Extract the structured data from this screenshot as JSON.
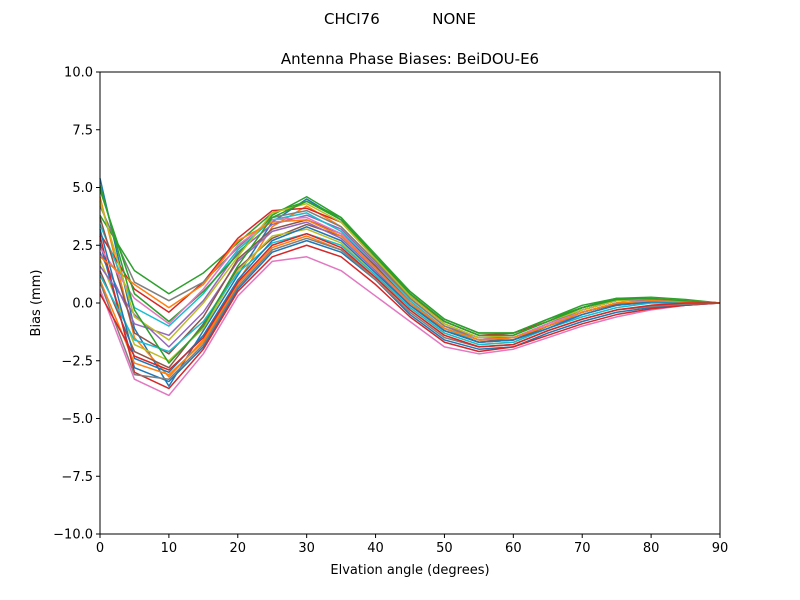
{
  "suptitle": "CHCI76           NONE",
  "chart_data": {
    "type": "line",
    "title": "Antenna Phase Biases: BeiDOU-E6",
    "xlabel": "Elvation angle (degrees)",
    "ylabel": "Bias (mm)",
    "xlim": [
      0,
      90
    ],
    "ylim": [
      -10,
      10
    ],
    "xticks": [
      0,
      10,
      20,
      30,
      40,
      50,
      60,
      70,
      80,
      90
    ],
    "xtick_labels": [
      "0",
      "10",
      "20",
      "30",
      "40",
      "50",
      "60",
      "70",
      "80",
      "90"
    ],
    "yticks": [
      -10,
      -7.5,
      -5,
      -2.5,
      0,
      2.5,
      5,
      7.5,
      10
    ],
    "ytick_labels": [
      "−10.0",
      "−7.5",
      "−5.0",
      "−2.5",
      "0.0",
      "2.5",
      "5.0",
      "7.5",
      "10.0"
    ],
    "grid": false,
    "legend": "none",
    "palette": [
      "#1f77b4",
      "#ff7f0e",
      "#2ca02c",
      "#d62728",
      "#9467bd",
      "#8c564b",
      "#e377c2",
      "#7f7f7f",
      "#bcbd22",
      "#17becf"
    ],
    "x": [
      0,
      5,
      10,
      15,
      20,
      25,
      30,
      35,
      40,
      45,
      50,
      55,
      60,
      65,
      70,
      75,
      80,
      85,
      90
    ],
    "series": [
      {
        "values": [
          5.4,
          -1.1,
          -3.6,
          -1.2,
          1.2,
          3.5,
          4.5,
          3.6,
          2.0,
          0.4,
          -0.8,
          -1.4,
          -1.4,
          -0.8,
          -0.2,
          0.2,
          0.2,
          0.1,
          0.0
        ]
      },
      {
        "values": [
          4.6,
          -1.5,
          -3.2,
          -1.6,
          0.9,
          3.3,
          4.2,
          3.3,
          1.8,
          0.3,
          -0.9,
          -1.5,
          -1.5,
          -0.9,
          -0.3,
          0.1,
          0.15,
          0.1,
          0.0
        ]
      },
      {
        "values": [
          3.8,
          1.4,
          0.4,
          1.3,
          2.6,
          3.9,
          4.4,
          3.7,
          2.0,
          0.5,
          -0.7,
          -1.3,
          -1.3,
          -0.7,
          -0.1,
          0.2,
          0.25,
          0.15,
          0.0
        ]
      },
      {
        "values": [
          3.0,
          0.6,
          -0.4,
          0.9,
          2.8,
          4.0,
          4.1,
          3.5,
          1.9,
          0.3,
          -0.8,
          -1.4,
          -1.3,
          -0.8,
          -0.2,
          0.15,
          0.2,
          0.1,
          0.0
        ]
      },
      {
        "values": [
          2.2,
          -0.9,
          -1.4,
          0.1,
          2.2,
          3.4,
          3.8,
          3.2,
          1.7,
          0.2,
          -1.0,
          -1.5,
          -1.5,
          -0.9,
          -0.3,
          0.1,
          0.15,
          0.1,
          0.0
        ]
      },
      {
        "values": [
          1.4,
          -2.1,
          -2.8,
          -0.9,
          1.5,
          2.8,
          3.4,
          2.9,
          1.5,
          0.0,
          -1.1,
          -1.6,
          -1.6,
          -1.0,
          -0.4,
          0.0,
          0.1,
          0.05,
          0.0
        ]
      },
      {
        "values": [
          0.6,
          -3.3,
          -4.0,
          -2.2,
          0.3,
          1.8,
          2.0,
          1.4,
          0.3,
          -0.8,
          -1.9,
          -2.2,
          -2.0,
          -1.5,
          -1.0,
          -0.6,
          -0.3,
          -0.1,
          0.0
        ]
      },
      {
        "values": [
          4.2,
          0.9,
          0.1,
          0.9,
          2.4,
          3.7,
          4.0,
          3.3,
          1.8,
          0.2,
          -1.0,
          -1.6,
          -1.5,
          -0.9,
          -0.3,
          0.1,
          0.2,
          0.1,
          0.0
        ]
      },
      {
        "values": [
          1.9,
          -1.8,
          -2.5,
          -1.1,
          1.4,
          2.9,
          3.2,
          2.6,
          1.2,
          -0.2,
          -1.3,
          -1.8,
          -1.7,
          -1.1,
          -0.5,
          -0.1,
          0.05,
          0.05,
          0.0
        ]
      },
      {
        "values": [
          3.4,
          -0.2,
          -1.0,
          0.4,
          2.3,
          3.6,
          3.9,
          3.1,
          1.6,
          0.1,
          -1.1,
          -1.7,
          -1.6,
          -1.0,
          -0.4,
          0.0,
          0.1,
          0.05,
          0.0
        ]
      },
      {
        "values": [
          2.6,
          -2.8,
          -3.4,
          -1.9,
          0.6,
          2.2,
          2.7,
          2.2,
          1.0,
          -0.5,
          -1.6,
          -2.0,
          -1.9,
          -1.3,
          -0.8,
          -0.4,
          -0.2,
          -0.1,
          0.0
        ]
      },
      {
        "values": [
          1.0,
          -2.6,
          -3.1,
          -1.7,
          0.8,
          2.4,
          2.9,
          2.3,
          1.1,
          -0.3,
          -1.4,
          -1.9,
          -1.8,
          -1.2,
          -0.7,
          -0.3,
          -0.1,
          0.0,
          0.0
        ]
      },
      {
        "values": [
          4.9,
          0.4,
          -0.8,
          0.5,
          2.1,
          3.8,
          4.6,
          3.7,
          2.1,
          0.5,
          -0.7,
          -1.3,
          -1.3,
          -0.7,
          -0.2,
          0.2,
          0.2,
          0.1,
          0.0
        ]
      },
      {
        "values": [
          2.9,
          -3.0,
          -3.7,
          -2.0,
          0.5,
          2.0,
          2.5,
          2.0,
          0.8,
          -0.6,
          -1.7,
          -2.1,
          -1.9,
          -1.4,
          -0.9,
          -0.5,
          -0.25,
          -0.1,
          0.0
        ]
      },
      {
        "values": [
          1.6,
          -0.5,
          -1.9,
          -0.4,
          1.8,
          3.1,
          3.5,
          2.8,
          1.4,
          -0.1,
          -1.2,
          -1.7,
          -1.6,
          -1.0,
          -0.5,
          -0.1,
          0.05,
          0.05,
          0.0
        ]
      },
      {
        "values": [
          3.7,
          -1.3,
          -2.2,
          -0.6,
          1.9,
          3.2,
          3.6,
          3.0,
          1.6,
          0.0,
          -1.2,
          -1.7,
          -1.6,
          -1.0,
          -0.4,
          -0.05,
          0.1,
          0.05,
          0.0
        ]
      },
      {
        "values": [
          2.4,
          0.2,
          -0.9,
          0.6,
          2.5,
          3.6,
          3.7,
          3.0,
          1.5,
          0.0,
          -1.1,
          -1.6,
          -1.5,
          -0.9,
          -0.4,
          0.0,
          0.1,
          0.05,
          0.0
        ]
      },
      {
        "values": [
          0.9,
          -3.1,
          -3.3,
          -1.8,
          0.7,
          2.3,
          2.8,
          2.3,
          1.0,
          -0.4,
          -1.5,
          -1.9,
          -1.8,
          -1.2,
          -0.7,
          -0.3,
          -0.15,
          -0.05,
          0.0
        ]
      },
      {
        "values": [
          4.4,
          -0.6,
          -1.6,
          0.0,
          2.0,
          3.9,
          4.3,
          3.5,
          1.9,
          0.3,
          -0.9,
          -1.5,
          -1.4,
          -0.8,
          -0.3,
          0.1,
          0.2,
          0.1,
          0.0
        ]
      },
      {
        "values": [
          1.2,
          -1.6,
          -2.1,
          -0.8,
          1.3,
          2.6,
          3.0,
          2.5,
          1.2,
          -0.2,
          -1.3,
          -1.8,
          -1.7,
          -1.1,
          -0.6,
          -0.2,
          0.0,
          0.0,
          0.0
        ]
      },
      {
        "values": [
          3.2,
          -2.4,
          -3.0,
          -1.4,
          1.0,
          2.7,
          3.3,
          2.7,
          1.3,
          -0.1,
          -1.2,
          -1.7,
          -1.6,
          -1.1,
          -0.5,
          -0.1,
          0.05,
          0.05,
          0.0
        ]
      },
      {
        "values": [
          2.0,
          0.8,
          -0.2,
          0.8,
          2.7,
          3.5,
          3.6,
          2.9,
          1.5,
          0.0,
          -1.1,
          -1.6,
          -1.5,
          -1.0,
          -0.4,
          0.0,
          0.1,
          0.05,
          0.0
        ]
      },
      {
        "values": [
          5.1,
          -0.3,
          -2.6,
          -1.0,
          1.6,
          3.7,
          4.4,
          3.6,
          2.0,
          0.4,
          -0.8,
          -1.4,
          -1.4,
          -0.8,
          -0.2,
          0.15,
          0.2,
          0.1,
          0.0
        ]
      },
      {
        "values": [
          0.4,
          -2.3,
          -2.9,
          -1.5,
          0.9,
          2.5,
          3.0,
          2.4,
          1.1,
          -0.3,
          -1.4,
          -1.9,
          -1.8,
          -1.2,
          -0.7,
          -0.3,
          -0.1,
          0.0,
          0.0
        ]
      }
    ]
  }
}
